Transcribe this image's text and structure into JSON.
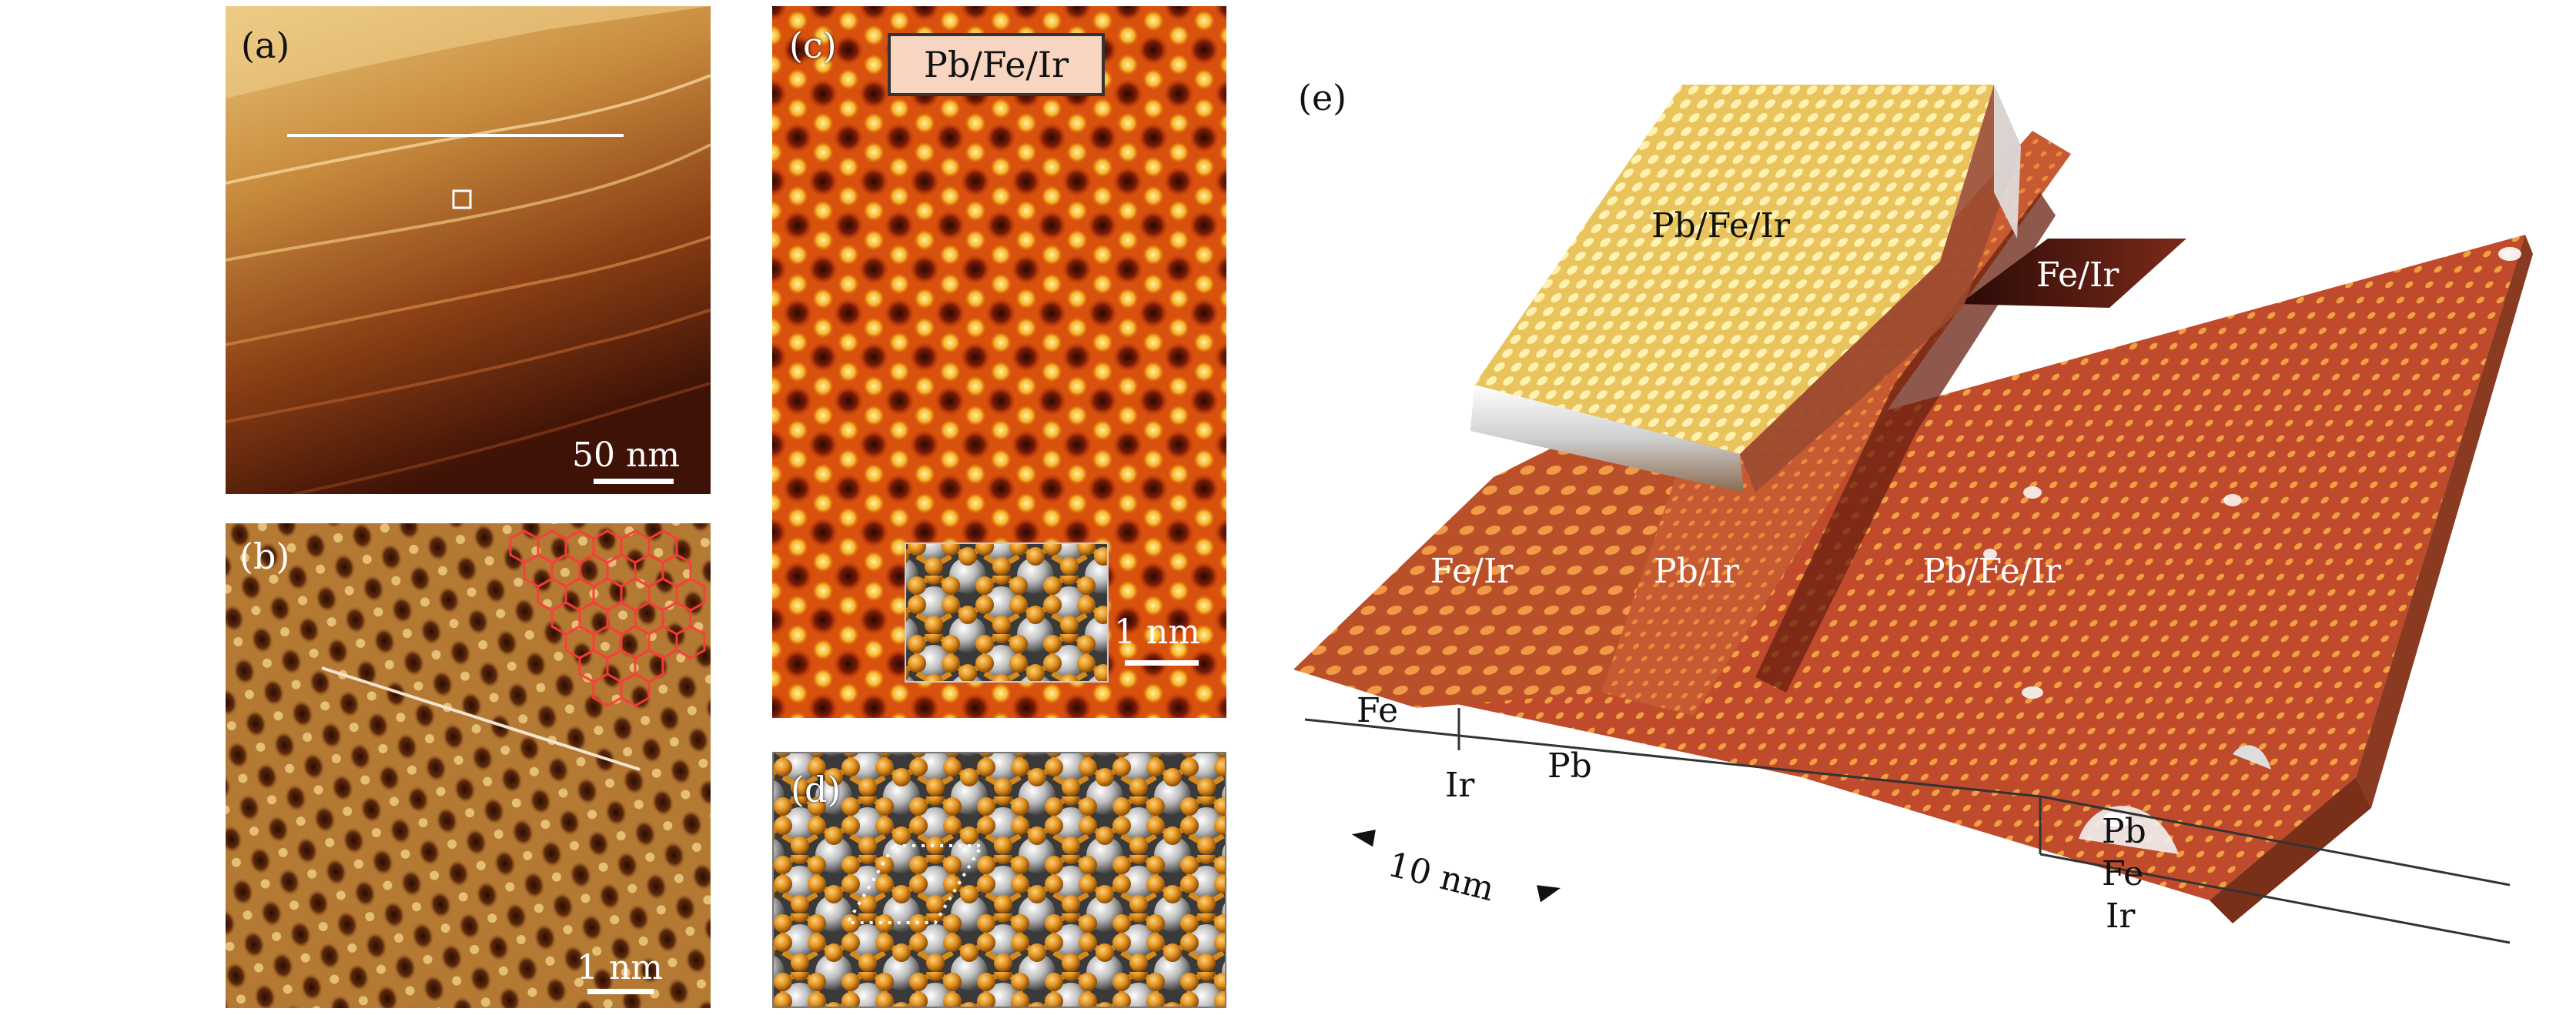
{
  "panels": {
    "a": {
      "label": "(a)",
      "scale": "50 nm"
    },
    "b": {
      "label": "(b)",
      "scale": "1 nm"
    },
    "c": {
      "label": "(c)",
      "title": "Pb/Fe/Ir",
      "scale": "1 nm"
    },
    "d": {
      "label": "(d)"
    },
    "e": {
      "label": "(e)",
      "regions": {
        "top_terrace": "Pb/Fe/Ir",
        "fe_ir_upper": "Fe/Ir",
        "fe_ir_left": "Fe/Ir",
        "pb_ir_middle": "Pb/Ir",
        "pb_fe_ir_right": "Pb/Fe/Ir"
      },
      "stack": {
        "fe": "Fe",
        "ir_left": "Ir",
        "pb_left": "Pb",
        "pb_right": "Pb",
        "fe_right": "Fe",
        "ir_right": "Ir"
      },
      "scale": "10 nm"
    }
  },
  "colors": {
    "terrace_light": "#e8c476",
    "terrace_dark": "#4a1a08",
    "stm_bright": "#f7e08a",
    "stm_dark": "#3a1004",
    "pb_orange": "#d98c1c",
    "ir_gray": "#bdbdbd",
    "surface_red": "#c2502f",
    "pb_yellow": "#f1d36a",
    "lattice_red": "#ff4444"
  }
}
